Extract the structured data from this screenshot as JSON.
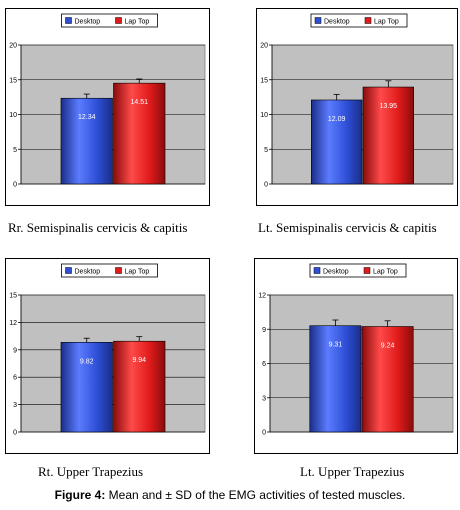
{
  "chart_data": [
    {
      "type": "bar",
      "categories": [
        ""
      ],
      "series": [
        {
          "name": "Desktop",
          "values": [
            12.34
          ],
          "errors": [
            0.6
          ]
        },
        {
          "name": "Lap Top",
          "values": [
            14.51
          ],
          "errors": [
            0.6
          ]
        }
      ],
      "value_labels": [
        "12.34",
        "14.51"
      ],
      "yticks": [
        "0",
        "5",
        "10",
        "15",
        "20"
      ],
      "ylim": [
        0,
        20
      ],
      "grid": true,
      "legend": "top",
      "colors": [
        "#2e4fd6",
        "#e01b1b"
      ],
      "caption": "Rr. Semispinalis cervicis & capitis"
    },
    {
      "type": "bar",
      "categories": [
        ""
      ],
      "series": [
        {
          "name": "Desktop",
          "values": [
            12.09
          ],
          "errors": [
            0.8
          ]
        },
        {
          "name": "Lap Top",
          "values": [
            13.95
          ],
          "errors": [
            0.9
          ]
        }
      ],
      "value_labels": [
        "12.09",
        "13.95"
      ],
      "yticks": [
        "0",
        "5",
        "10",
        "15",
        "20"
      ],
      "ylim": [
        0,
        20
      ],
      "grid": true,
      "legend": "top",
      "colors": [
        "#2e4fd6",
        "#e01b1b"
      ],
      "caption": "Lt. Semispinalis cervicis & capitis"
    },
    {
      "type": "bar",
      "categories": [
        ""
      ],
      "series": [
        {
          "name": "Desktop",
          "values": [
            9.82
          ],
          "errors": [
            0.45
          ]
        },
        {
          "name": "Lap Top",
          "values": [
            9.94
          ],
          "errors": [
            0.5
          ]
        }
      ],
      "value_labels": [
        "9.82",
        "9.94"
      ],
      "yticks": [
        "0",
        "3",
        "6",
        "9",
        "12",
        "15"
      ],
      "ylim": [
        0,
        15
      ],
      "grid": true,
      "legend": "top",
      "colors": [
        "#2e4fd6",
        "#e01b1b"
      ],
      "caption": "Rt. Upper Trapezius"
    },
    {
      "type": "bar",
      "categories": [
        ""
      ],
      "series": [
        {
          "name": "Desktop",
          "values": [
            9.31
          ],
          "errors": [
            0.5
          ]
        },
        {
          "name": "Lap Top",
          "values": [
            9.24
          ],
          "errors": [
            0.5
          ]
        }
      ],
      "value_labels": [
        "9.31",
        "9.24"
      ],
      "yticks": [
        "0",
        "3",
        "6",
        "9",
        "12"
      ],
      "ylim": [
        0,
        12
      ],
      "grid": true,
      "legend": "top",
      "colors": [
        "#2e4fd6",
        "#e01b1b"
      ],
      "caption": "Lt. Upper Trapezius"
    }
  ],
  "figure_caption": {
    "label": "Figure 4:",
    "text": " Mean and  ± SD of the EMG activities of tested muscles."
  }
}
